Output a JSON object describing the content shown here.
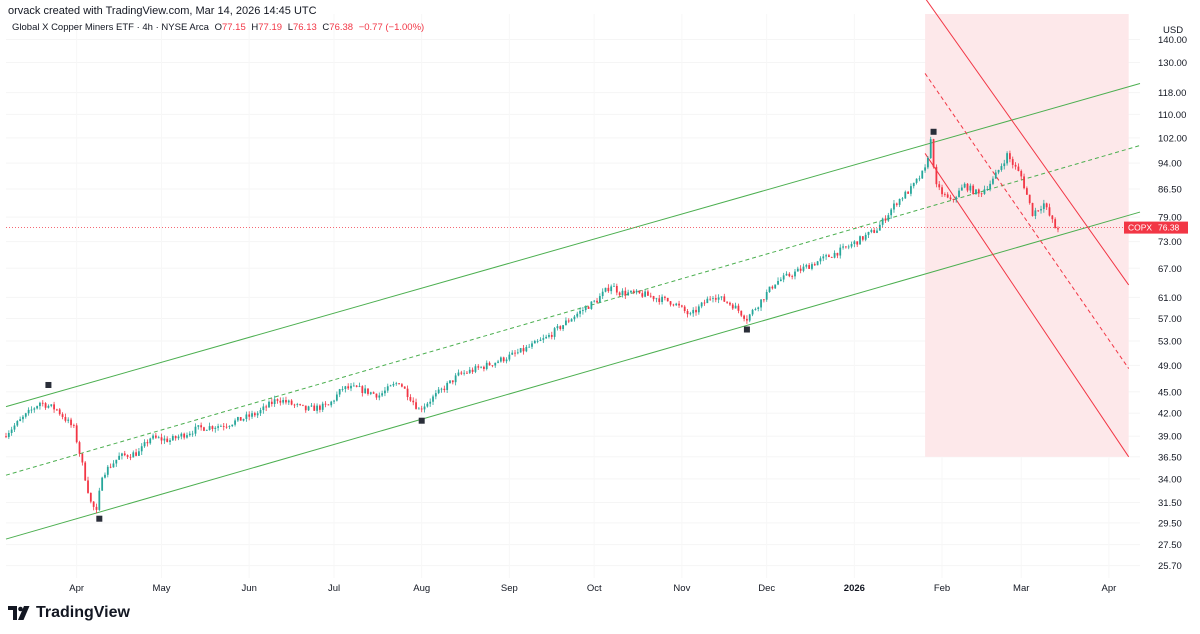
{
  "credit": "orvack created with TradingView.com, Mar 14, 2026 14:45 UTC",
  "legend": {
    "name": "Global X Copper Miners ETF · 4h · NYSE Arca",
    "o_key": "O",
    "o_val": "77.15",
    "h_key": "H",
    "h_val": "77.19",
    "l_key": "L",
    "l_val": "76.13",
    "c_key": "C",
    "c_val": "76.38",
    "change": "−0.77 (−1.00%)"
  },
  "brand": "TradingView",
  "colors": {
    "up": "#26a69a",
    "down": "#f23645",
    "channel": "#4caf50",
    "down_channel": "#f23645",
    "fill": "#fde8ea"
  },
  "chart_data": {
    "type": "candlestick",
    "symbol": "COPX",
    "last_price": 76.38,
    "last_price_label": "76.38",
    "currency_label": "USD",
    "y_ticks": [
      "25.70",
      "27.50",
      "29.50",
      "31.50",
      "34.00",
      "36.50",
      "39.00",
      "42.00",
      "45.00",
      "49.00",
      "53.00",
      "57.00",
      "61.00",
      "67.00",
      "73.00",
      "79.00",
      "86.50",
      "94.00",
      "102.00",
      "110.00",
      "118.00",
      "130.00",
      "140.00"
    ],
    "x_ticks": [
      "Apr",
      "May",
      "Jun",
      "Jul",
      "Aug",
      "Sep",
      "Oct",
      "Nov",
      "Dec",
      "2026",
      "Feb",
      "Mar",
      "Apr"
    ],
    "x_range": [
      "2025-03-07",
      "2026-04-12"
    ],
    "y_scale": "log",
    "ylim": [
      24.7,
      152
    ],
    "price_path": [
      [
        "2025-03-07",
        39.0
      ],
      [
        "2025-03-20",
        43.5
      ],
      [
        "2025-03-26",
        42.5
      ],
      [
        "2025-04-01",
        40.0
      ],
      [
        "2025-04-03",
        37.0
      ],
      [
        "2025-04-07",
        31.5
      ],
      [
        "2025-04-09",
        30.5
      ],
      [
        "2025-04-11",
        34.5
      ],
      [
        "2025-04-17",
        36.5
      ],
      [
        "2025-04-24",
        37.0
      ],
      [
        "2025-04-28",
        38.8
      ],
      [
        "2025-05-05",
        38.5
      ],
      [
        "2025-05-15",
        40.0
      ],
      [
        "2025-05-25",
        40.5
      ],
      [
        "2025-06-05",
        42.0
      ],
      [
        "2025-06-12",
        44.0
      ],
      [
        "2025-06-22",
        42.5
      ],
      [
        "2025-06-30",
        43.0
      ],
      [
        "2025-07-05",
        45.5
      ],
      [
        "2025-07-10",
        45.5
      ],
      [
        "2025-07-18",
        44.5
      ],
      [
        "2025-07-25",
        46.5
      ],
      [
        "2025-08-01",
        42.5
      ],
      [
        "2025-08-07",
        44.5
      ],
      [
        "2025-08-15",
        47.5
      ],
      [
        "2025-08-25",
        49.0
      ],
      [
        "2025-09-05",
        51.0
      ],
      [
        "2025-09-15",
        53.5
      ],
      [
        "2025-09-25",
        57.5
      ],
      [
        "2025-10-03",
        60.5
      ],
      [
        "2025-10-08",
        63.5
      ],
      [
        "2025-10-11",
        62.0
      ],
      [
        "2025-10-20",
        61.5
      ],
      [
        "2025-10-30",
        60.0
      ],
      [
        "2025-11-05",
        57.5
      ],
      [
        "2025-11-13",
        61.5
      ],
      [
        "2025-11-20",
        59.5
      ],
      [
        "2025-11-25",
        57.0
      ],
      [
        "2025-12-05",
        64.0
      ],
      [
        "2025-12-15",
        67.0
      ],
      [
        "2025-12-30",
        71.5
      ],
      [
        "2026-01-10",
        76.0
      ],
      [
        "2026-01-17",
        83.0
      ],
      [
        "2026-01-22",
        86.5
      ],
      [
        "2026-01-27",
        92.0
      ],
      [
        "2026-01-29",
        101.0
      ],
      [
        "2026-01-31",
        87.0
      ],
      [
        "2026-02-05",
        83.0
      ],
      [
        "2026-02-10",
        87.5
      ],
      [
        "2026-02-15",
        85.0
      ],
      [
        "2026-02-20",
        89.0
      ],
      [
        "2026-02-25",
        96.5
      ],
      [
        "2026-03-02",
        90.0
      ],
      [
        "2026-03-06",
        80.0
      ],
      [
        "2026-03-10",
        82.5
      ],
      [
        "2026-03-14",
        76.38
      ]
    ],
    "pivot_markers": [
      {
        "date": "2025-03-22",
        "price": 46.0
      },
      {
        "date": "2025-04-09",
        "price": 29.9
      },
      {
        "date": "2025-08-01",
        "price": 41.0
      },
      {
        "date": "2025-11-24",
        "price": 55.0
      },
      {
        "date": "2026-01-29",
        "price": 104.0
      }
    ],
    "ascending_channel": {
      "upper": [
        [
          "2025-03-07",
          42.9
        ],
        [
          "2026-04-12",
          121.5
        ]
      ],
      "mid": [
        [
          "2025-03-07",
          34.4
        ],
        [
          "2026-04-12",
          99.5
        ]
      ],
      "lower": [
        [
          "2025-03-07",
          28.0
        ],
        [
          "2026-04-12",
          80.3
        ]
      ]
    },
    "descending_channel": {
      "upper": [
        [
          "2026-01-26",
          160.0
        ],
        [
          "2026-04-08",
          63.5
        ]
      ],
      "mid": [
        [
          "2026-01-26",
          125.5
        ],
        [
          "2026-04-08",
          48.5
        ]
      ],
      "lower": [
        [
          "2026-01-26",
          97.0
        ],
        [
          "2026-04-08",
          36.5
        ]
      ],
      "shade_x": [
        "2026-01-26",
        "2026-04-08"
      ]
    },
    "last_price_line": true
  }
}
